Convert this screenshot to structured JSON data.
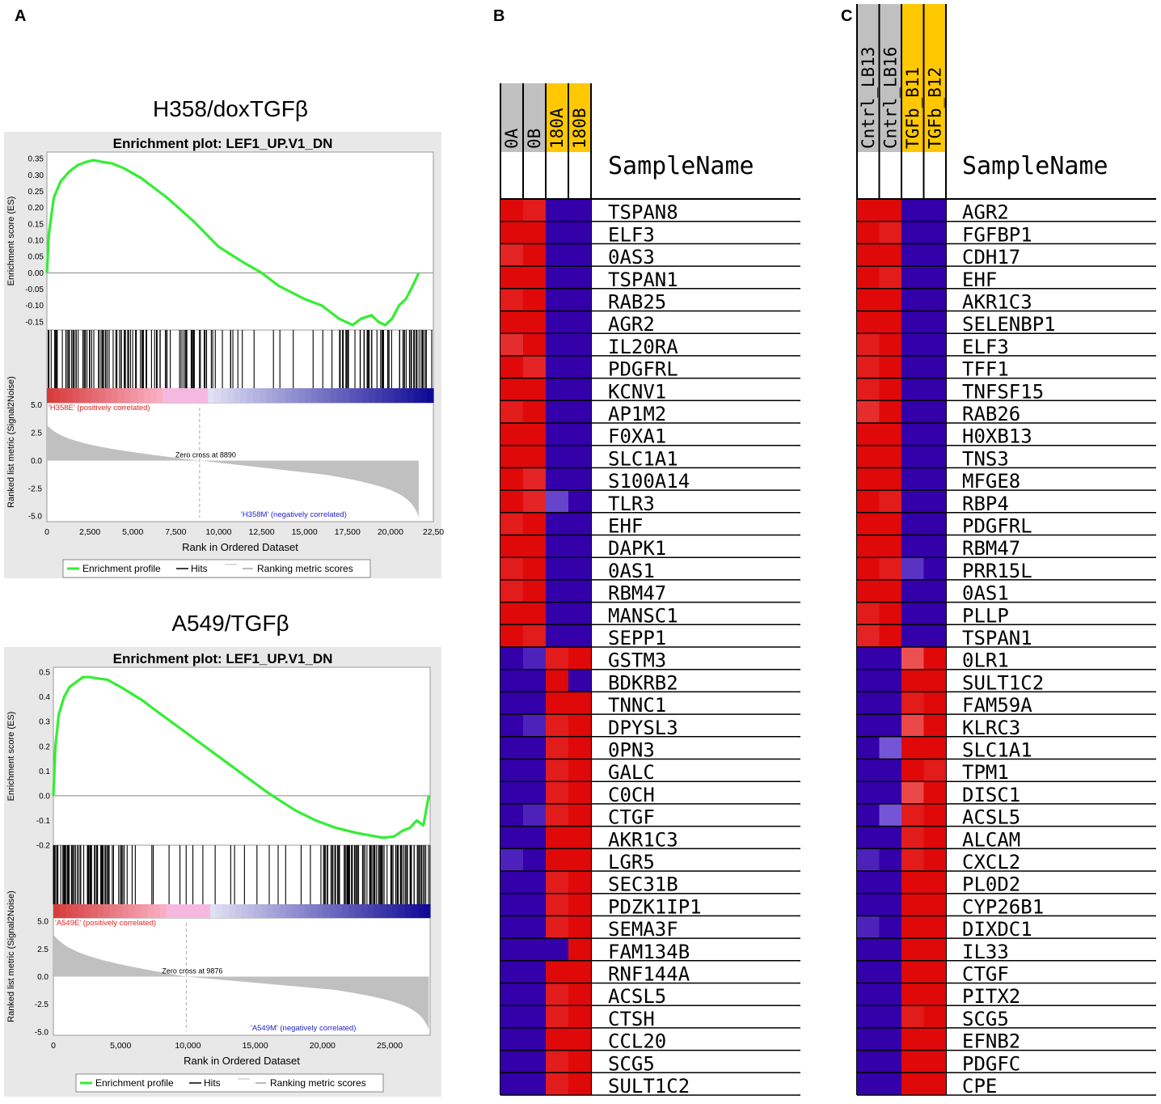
{
  "panel_labels": [
    "A",
    "B",
    "C"
  ],
  "colors": {
    "es_line": "#33ee33",
    "panel_bg": "#e8e8e8",
    "metric_fill": "#c0c0c0",
    "pos_label": "#dd2222",
    "neg_label": "#2222cc",
    "header_gray": "#c0c0c0",
    "header_gold": "#ffc800",
    "heat_red": "#dd0000",
    "heat_blue": "#3300aa"
  },
  "chart_data": [
    {
      "type": "line",
      "panel": "A",
      "heading": "H358/doxTGFβ",
      "title": "Enrichment plot: LEF1_UP.V1_DN",
      "ylabel_es": "Enrichment score (ES)",
      "ylabel_metric": "Ranked list metric (Signal2Noise)",
      "xlabel": "Rank in Ordered Dataset",
      "xlim": [
        0,
        22500
      ],
      "es_ylim": [
        -0.175,
        0.37
      ],
      "metric_ylim": [
        -5.5,
        5.2
      ],
      "x_ticks": [
        "0",
        "2,500",
        "5,000",
        "7,500",
        "10,000",
        "12,500",
        "15,000",
        "17,500",
        "20,000",
        "22,50"
      ],
      "x_tick_values": [
        0,
        2500,
        5000,
        7500,
        10000,
        12500,
        15000,
        17500,
        20000,
        22500
      ],
      "es_ticks": [
        "0.35",
        "0.30",
        "0.25",
        "0.20",
        "0.15",
        "0.10",
        "0.05",
        "0.00",
        "-0.05",
        "-0.10",
        "-0.15"
      ],
      "es_tick_values": [
        0.35,
        0.3,
        0.25,
        0.2,
        0.15,
        0.1,
        0.05,
        0.0,
        -0.05,
        -0.1,
        -0.15
      ],
      "metric_ticks": [
        "5.0",
        "2.5",
        "0.0",
        "-2.5",
        "-5.0"
      ],
      "metric_tick_values": [
        5.0,
        2.5,
        0.0,
        -2.5,
        -5.0
      ],
      "es_x": [
        0,
        120,
        400,
        800,
        1300,
        1800,
        2300,
        2700,
        3200,
        3800,
        4500,
        5500,
        7000,
        8500,
        10000,
        11500,
        12500,
        13500,
        15000,
        16000,
        17000,
        17800,
        18300,
        18900,
        19300,
        19700,
        20100,
        20500,
        20900,
        21300,
        21650
      ],
      "es_y": [
        0,
        0.12,
        0.23,
        0.28,
        0.31,
        0.33,
        0.34,
        0.345,
        0.34,
        0.335,
        0.32,
        0.29,
        0.23,
        0.16,
        0.08,
        0.03,
        0.0,
        -0.04,
        -0.08,
        -0.1,
        -0.14,
        -0.16,
        -0.14,
        -0.13,
        -0.15,
        -0.16,
        -0.14,
        -0.1,
        -0.08,
        -0.04,
        0.0
      ],
      "metric_max": 3.2,
      "metric_min": -5.1,
      "zero_cross": 8890,
      "n_genes": 21650,
      "hit_density": [
        9,
        11,
        12,
        12,
        11,
        10,
        9,
        8,
        8,
        6,
        4,
        2,
        1,
        1,
        1,
        2,
        5,
        8,
        9,
        10,
        12,
        9
      ],
      "pos_label": "'H358E' (positively correlated)",
      "neg_label": "'H358M' (negatively correlated)",
      "zero_label": "Zero cross at 8890",
      "legend": [
        "Enrichment profile",
        "Hits",
        "Ranking metric scores"
      ]
    },
    {
      "type": "line",
      "panel": "A",
      "heading": "A549/TGFβ",
      "title": "Enrichment plot: LEF1_UP.V1_DN",
      "ylabel_es": "Enrichment score (ES)",
      "ylabel_metric": "Ranked list metric (Signal2Noise)",
      "xlabel": "Rank in Ordered Dataset",
      "xlim": [
        0,
        28000
      ],
      "es_ylim": [
        -0.2,
        0.52
      ],
      "metric_ylim": [
        -5.3,
        5.3
      ],
      "x_ticks": [
        "0",
        "5,000",
        "10,000",
        "15,000",
        "20,000",
        "25,000"
      ],
      "x_tick_values": [
        0,
        5000,
        10000,
        15000,
        20000,
        25000
      ],
      "es_ticks": [
        "0.5",
        "0.4",
        "0.3",
        "0.2",
        "0.1",
        "0.0",
        "-0.1",
        "-0.2"
      ],
      "es_tick_values": [
        0.5,
        0.4,
        0.3,
        0.2,
        0.1,
        0.0,
        -0.1,
        -0.2
      ],
      "metric_ticks": [
        "5.0",
        "2.5",
        "0.0",
        "-2.5",
        "-5.0"
      ],
      "metric_tick_values": [
        5.0,
        2.5,
        0.0,
        -2.5,
        -5.0
      ],
      "es_x": [
        0,
        150,
        400,
        800,
        1200,
        1700,
        2200,
        2700,
        3300,
        4000,
        5000,
        6500,
        8000,
        10000,
        12000,
        14000,
        16000,
        18000,
        19500,
        21000,
        22500,
        23500,
        24500,
        25300,
        26000,
        26500,
        27000,
        27500,
        27900
      ],
      "es_y": [
        0,
        0.2,
        0.33,
        0.4,
        0.44,
        0.46,
        0.48,
        0.48,
        0.475,
        0.47,
        0.44,
        0.39,
        0.33,
        0.25,
        0.17,
        0.09,
        0.01,
        -0.06,
        -0.1,
        -0.13,
        -0.15,
        -0.16,
        -0.17,
        -0.165,
        -0.14,
        -0.13,
        -0.1,
        -0.12,
        0.0
      ],
      "metric_max": 3.8,
      "metric_min": -4.8,
      "zero_cross": 9876,
      "n_genes": 27900,
      "hit_density": [
        10,
        11,
        11,
        10,
        9,
        8,
        6,
        3,
        1,
        1,
        1,
        1,
        1,
        1,
        1,
        1,
        1,
        1,
        1,
        1,
        1,
        1,
        1,
        1,
        1,
        1,
        1,
        5,
        9,
        10,
        9,
        10,
        9,
        8,
        10,
        9,
        9,
        8
      ],
      "pos_label": "'A549E' (positively correlated)",
      "neg_label": "'A549M' (negatively correlated)",
      "zero_label": "Zero cross at 9876",
      "legend": [
        "Enrichment profile",
        "Hits",
        "Ranking metric scores"
      ]
    },
    {
      "type": "heatmap",
      "panel": "B",
      "header": "SampleName",
      "samples": [
        "0A",
        "0B",
        "180A",
        "180B"
      ],
      "sample_groups": [
        "gray",
        "gray",
        "gold",
        "gold"
      ],
      "genes": [
        "TSPAN8",
        "ELF3",
        "0AS3",
        "TSPAN1",
        "RAB25",
        "AGR2",
        "IL20RA",
        "PDGFRL",
        "KCNV1",
        "AP1M2",
        "F0XA1",
        "SLC1A1",
        "S100A14",
        "TLR3",
        "EHF",
        "DAPK1",
        "0AS1",
        "RBM47",
        "MANSC1",
        "SEPP1",
        "GSTM3",
        "BDKRB2",
        "TNNC1",
        "DPYSL3",
        "0PN3",
        "GALC",
        "C0CH",
        "CTGF",
        "AKR1C3",
        "LGR5",
        "SEC31B",
        "PDZK1IP1",
        "SEMA3F",
        "FAM134B",
        "RNF144A",
        "ACSL5",
        "CTSH",
        "CCL20",
        "SCG5",
        "SULT1C2"
      ],
      "values": [
        [
          0.95,
          0.85,
          -1.0,
          -1.0
        ],
        [
          0.95,
          0.95,
          -1.0,
          -1.0
        ],
        [
          0.8,
          0.95,
          -1.0,
          -1.0
        ],
        [
          0.95,
          0.95,
          -1.0,
          -1.0
        ],
        [
          0.85,
          0.95,
          -1.0,
          -1.0
        ],
        [
          0.95,
          0.95,
          -1.0,
          -1.0
        ],
        [
          0.75,
          0.95,
          -1.0,
          -1.0
        ],
        [
          0.95,
          0.8,
          -1.0,
          -1.0
        ],
        [
          0.95,
          0.95,
          -1.0,
          -1.0
        ],
        [
          0.85,
          0.95,
          -1.0,
          -1.0
        ],
        [
          0.95,
          0.95,
          -1.0,
          -1.0
        ],
        [
          0.95,
          0.95,
          -1.0,
          -1.0
        ],
        [
          0.95,
          0.8,
          -1.0,
          -1.0
        ],
        [
          0.95,
          0.8,
          -0.6,
          -1.0
        ],
        [
          0.85,
          0.95,
          -1.0,
          -1.0
        ],
        [
          0.95,
          0.95,
          -1.0,
          -1.0
        ],
        [
          0.85,
          0.95,
          -1.0,
          -1.0
        ],
        [
          0.85,
          0.95,
          -1.0,
          -1.0
        ],
        [
          0.95,
          0.95,
          -1.0,
          -1.0
        ],
        [
          0.95,
          0.85,
          -1.0,
          -1.0
        ],
        [
          -1.0,
          -0.8,
          0.85,
          0.95
        ],
        [
          -1.0,
          -1.0,
          0.95,
          -1.0
        ],
        [
          -1.0,
          -1.0,
          0.95,
          0.95
        ],
        [
          -1.0,
          -0.8,
          0.85,
          0.95
        ],
        [
          -1.0,
          -1.0,
          0.85,
          0.95
        ],
        [
          -1.0,
          -1.0,
          0.85,
          0.95
        ],
        [
          -1.0,
          -1.0,
          0.85,
          0.95
        ],
        [
          -1.0,
          -0.8,
          0.85,
          0.95
        ],
        [
          -1.0,
          -1.0,
          0.95,
          0.95
        ],
        [
          -0.8,
          -1.0,
          0.95,
          0.95
        ],
        [
          -1.0,
          -1.0,
          0.85,
          0.95
        ],
        [
          -1.0,
          -1.0,
          0.85,
          0.95
        ],
        [
          -1.0,
          -1.0,
          0.85,
          0.95
        ],
        [
          -1.0,
          -1.0,
          -1.0,
          0.95
        ],
        [
          -1.0,
          -1.0,
          0.95,
          0.95
        ],
        [
          -1.0,
          -1.0,
          0.85,
          0.95
        ],
        [
          -1.0,
          -1.0,
          0.85,
          0.95
        ],
        [
          -1.0,
          -1.0,
          0.95,
          0.95
        ],
        [
          -1.0,
          -1.0,
          0.85,
          0.95
        ],
        [
          -1.0,
          -1.0,
          0.85,
          0.95
        ]
      ]
    },
    {
      "type": "heatmap",
      "panel": "C",
      "header": "SampleName",
      "samples": [
        "Cntrl_LB13",
        "Cntrl_LB16",
        "TGFb_B11",
        "TGFb_B12"
      ],
      "sample_groups": [
        "gray",
        "gray",
        "gold",
        "gold"
      ],
      "genes": [
        "AGR2",
        "FGFBP1",
        "CDH17",
        "EHF",
        "AKR1C3",
        "SELENBP1",
        "ELF3",
        "TFF1",
        "TNFSF15",
        "RAB26",
        "H0XB13",
        "TNS3",
        "MFGE8",
        "RBP4",
        "PDGFRL",
        "RBM47",
        "PRR15L",
        "0AS1",
        "PLLP",
        "TSPAN1",
        "0LR1",
        "SULT1C2",
        "FAM59A",
        "KLRC3",
        "SLC1A1",
        "TPM1",
        "DISC1",
        "ACSL5",
        "ALCAM",
        "CXCL2",
        "PL0D2",
        "CYP26B1",
        "DIXDC1",
        "IL33",
        "CTGF",
        "PITX2",
        "SCG5",
        "EFNB2",
        "PDGFC",
        "CPE"
      ],
      "values": [
        [
          0.95,
          0.95,
          -1.0,
          -1.0
        ],
        [
          0.95,
          0.85,
          -1.0,
          -1.0
        ],
        [
          0.95,
          0.95,
          -1.0,
          -1.0
        ],
        [
          0.95,
          0.85,
          -1.0,
          -1.0
        ],
        [
          0.95,
          0.95,
          -1.0,
          -1.0
        ],
        [
          0.95,
          0.95,
          -1.0,
          -1.0
        ],
        [
          0.85,
          0.95,
          -1.0,
          -1.0
        ],
        [
          0.85,
          0.95,
          -1.0,
          -1.0
        ],
        [
          0.85,
          0.95,
          -1.0,
          -1.0
        ],
        [
          0.75,
          0.95,
          -1.0,
          -1.0
        ],
        [
          0.95,
          0.95,
          -1.0,
          -1.0
        ],
        [
          0.95,
          0.95,
          -1.0,
          -1.0
        ],
        [
          0.95,
          0.95,
          -1.0,
          -1.0
        ],
        [
          0.95,
          0.85,
          -1.0,
          -1.0
        ],
        [
          0.95,
          0.95,
          -1.0,
          -1.0
        ],
        [
          0.95,
          0.95,
          -1.0,
          -1.0
        ],
        [
          0.95,
          0.85,
          -0.7,
          -1.0
        ],
        [
          0.95,
          0.95,
          -1.0,
          -1.0
        ],
        [
          0.85,
          0.95,
          -1.0,
          -1.0
        ],
        [
          0.8,
          0.95,
          -1.0,
          -1.0
        ],
        [
          -1.0,
          -1.0,
          0.55,
          0.95
        ],
        [
          -1.0,
          -1.0,
          0.95,
          0.95
        ],
        [
          -1.0,
          -1.0,
          0.85,
          0.95
        ],
        [
          -1.0,
          -1.0,
          0.6,
          0.95
        ],
        [
          -1.0,
          -0.5,
          0.95,
          0.95
        ],
        [
          -1.0,
          -1.0,
          0.95,
          0.85
        ],
        [
          -1.0,
          -1.0,
          0.6,
          0.95
        ],
        [
          -1.0,
          -0.5,
          0.85,
          0.95
        ],
        [
          -1.0,
          -1.0,
          0.85,
          0.95
        ],
        [
          -0.8,
          -1.0,
          0.85,
          0.95
        ],
        [
          -1.0,
          -1.0,
          0.95,
          0.95
        ],
        [
          -1.0,
          -1.0,
          0.95,
          0.95
        ],
        [
          -0.8,
          -1.0,
          0.95,
          0.95
        ],
        [
          -1.0,
          -1.0,
          0.95,
          0.95
        ],
        [
          -1.0,
          -1.0,
          0.95,
          0.95
        ],
        [
          -1.0,
          -1.0,
          0.95,
          0.95
        ],
        [
          -1.0,
          -1.0,
          0.85,
          0.95
        ],
        [
          -1.0,
          -1.0,
          0.95,
          0.95
        ],
        [
          -1.0,
          -1.0,
          0.95,
          0.95
        ],
        [
          -1.0,
          -1.0,
          0.95,
          0.95
        ]
      ]
    }
  ]
}
